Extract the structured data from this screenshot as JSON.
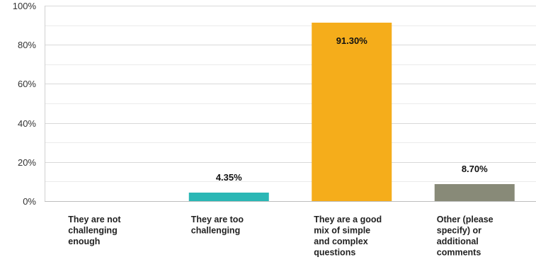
{
  "chart_data": {
    "type": "bar",
    "title": "",
    "xlabel": "",
    "ylabel": "",
    "ylim": [
      0,
      100
    ],
    "y_ticks": [
      {
        "value": 0,
        "label": "0%"
      },
      {
        "value": 20,
        "label": "20%"
      },
      {
        "value": 40,
        "label": "40%"
      },
      {
        "value": 60,
        "label": "60%"
      },
      {
        "value": 80,
        "label": "80%"
      },
      {
        "value": 100,
        "label": "100%"
      }
    ],
    "grid": true,
    "legend": "none",
    "categories": [
      "They are not challenging enough",
      "They are too challenging",
      "They are a good mix of simple and complex questions",
      "Other (please specify) or additional comments"
    ],
    "category_label_lines": [
      [
        "They are not",
        "challenging",
        "enough"
      ],
      [
        "They are too",
        "challenging"
      ],
      [
        "They are a good",
        "mix of simple",
        "and complex",
        "questions"
      ],
      [
        "Other (please",
        "specify) or",
        "additional",
        "comments"
      ]
    ],
    "values": [
      0,
      4.35,
      91.3,
      8.7
    ],
    "data_labels": [
      "",
      "4.35%",
      "91.30%",
      "8.70%"
    ],
    "colors": [
      "#7fbfbf",
      "#2ab7b5",
      "#f5ad1b",
      "#888a78"
    ]
  }
}
